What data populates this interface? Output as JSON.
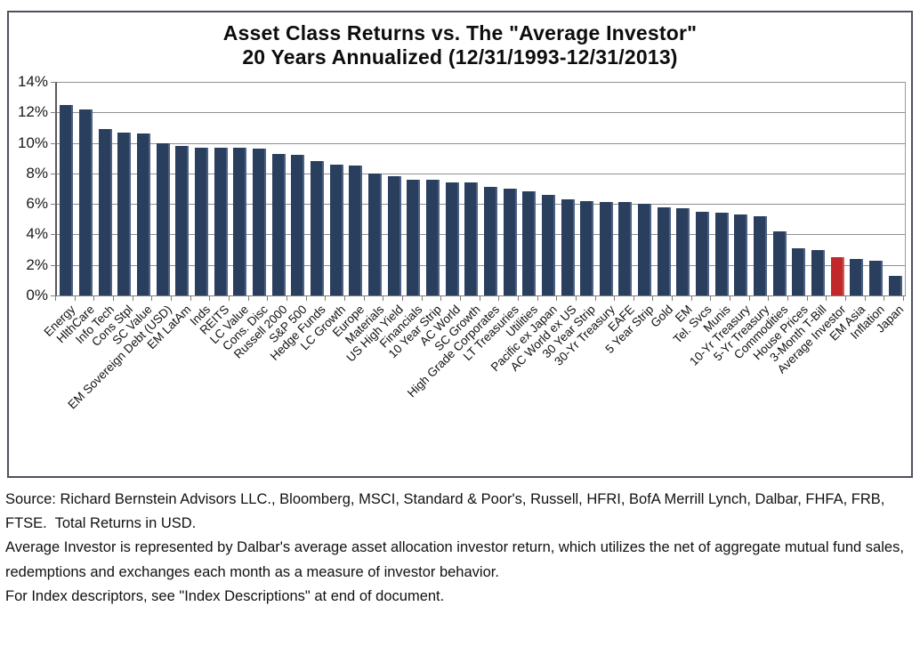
{
  "title": {
    "line1": "Asset Class Returns vs. The \"Average Investor\"",
    "line2": "20 Years Annualized (12/31/1993-12/31/2013)"
  },
  "chart_data": {
    "type": "bar",
    "title": "Asset Class Returns vs. The \"Average Investor\" 20 Years Annualized (12/31/1993-12/31/2013)",
    "categories": [
      "Energy",
      "HlthCare",
      "Info Tech",
      "Cons Stpl",
      "SC Value",
      "EM Sovereign Debt (USD)",
      "EM LatAm",
      "Inds",
      "REITS",
      "LC Value",
      "Cons. Disc",
      "Russell 2000",
      "S&P 500",
      "Hedge Funds",
      "LC Growth",
      "Europe",
      "Materials",
      "US High Yield",
      "Financials",
      "10 Year Strip",
      "AC World",
      "SC Growth",
      "High Grade Corporates",
      "LT Treasuries",
      "Utilities",
      "Pacific ex Japan",
      "AC World ex US",
      "30 Year Strip",
      "30-Yr Treasury",
      "EAFE",
      "5 Year Strip",
      "Gold",
      "EM",
      "Tel. Svcs",
      "Munis",
      "10-Yr Treasury",
      "5-Yr Treasury",
      "Commodities",
      "House Prices",
      "3-Month T-Bill",
      "Average Investor",
      "EM Asia",
      "Inflation",
      "Japan"
    ],
    "values": [
      12.5,
      12.2,
      10.9,
      10.7,
      10.6,
      10.0,
      9.8,
      9.7,
      9.7,
      9.7,
      9.6,
      9.3,
      9.2,
      8.8,
      8.6,
      8.5,
      8.0,
      7.8,
      7.6,
      7.6,
      7.4,
      7.4,
      7.1,
      7.0,
      6.8,
      6.6,
      6.3,
      6.2,
      6.1,
      6.1,
      6.0,
      5.8,
      5.7,
      5.5,
      5.4,
      5.3,
      5.2,
      4.2,
      3.1,
      3.0,
      2.5,
      2.4,
      2.3,
      1.3
    ],
    "unit": "%",
    "y_tick_labels": [
      "14%",
      "12%",
      "10%",
      "8%",
      "6%",
      "4%",
      "2%",
      "0%"
    ],
    "ylim": [
      0,
      14
    ],
    "grid": true,
    "legend": "none",
    "bar_color": "#2a3e5e",
    "highlight": {
      "index": 40,
      "label": "Average Investor",
      "color": "#c0282a"
    }
  },
  "footer": {
    "source": "Source: Richard Bernstein Advisors LLC., Bloomberg, MSCI, Standard & Poor's, Russell, HFRI, BofA Merrill Lynch, Dalbar, FHFA, FRB, FTSE.  Total Returns in USD.",
    "average_investor_note": "Average Investor is represented by Dalbar's average asset allocation investor return, which utilizes the net of aggregate mutual fund sales, redemptions and exchanges each month as a measure of investor behavior.",
    "index_note": "For Index descriptors, see \"Index Descriptions\" at end of document."
  }
}
